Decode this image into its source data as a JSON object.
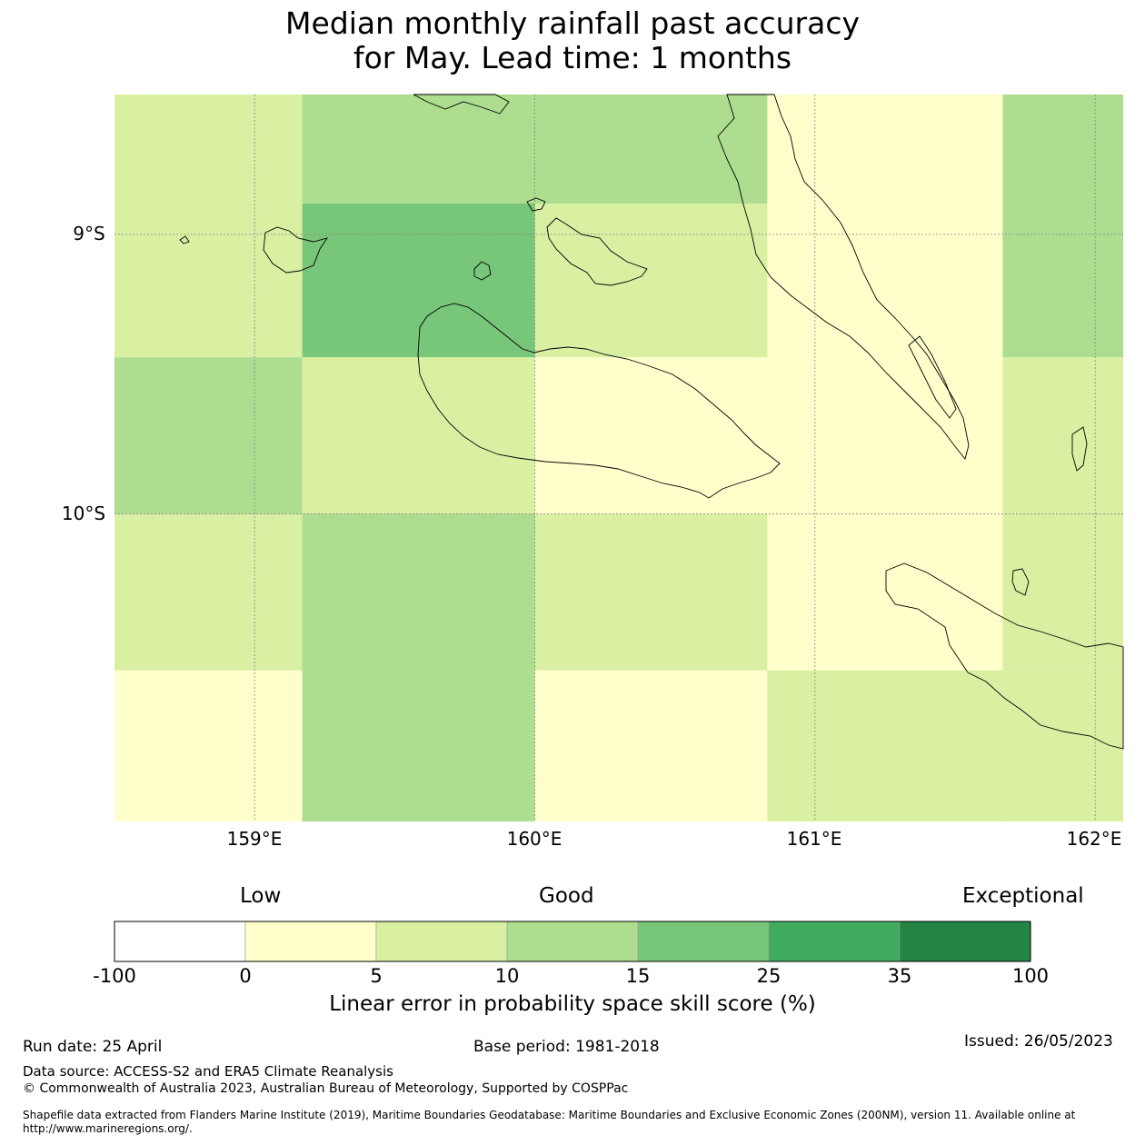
{
  "title_line1": "Median monthly rainfall past accuracy",
  "title_line2": "for May. Lead time: 1 months",
  "map": {
    "lat_labels": [
      "9°S",
      "10°S"
    ],
    "lon_labels": [
      "159°E",
      "160°E",
      "161°E",
      "162°E"
    ],
    "lon_range": [
      158.5,
      162.1
    ],
    "lat_range": [
      -8.5,
      -11.1
    ]
  },
  "grid_cells": [
    {
      "lon": [
        158.5,
        159.17
      ],
      "lat": [
        -8.5,
        -8.89
      ],
      "category": 2
    },
    {
      "lon": [
        159.17,
        160.0
      ],
      "lat": [
        -8.5,
        -8.89
      ],
      "category": 3
    },
    {
      "lon": [
        160.0,
        160.83
      ],
      "lat": [
        -8.5,
        -8.89
      ],
      "category": 3
    },
    {
      "lon": [
        160.83,
        161.67
      ],
      "lat": [
        -8.5,
        -8.89
      ],
      "category": 1
    },
    {
      "lon": [
        161.67,
        162.1
      ],
      "lat": [
        -8.5,
        -8.89
      ],
      "category": 3
    },
    {
      "lon": [
        158.5,
        159.17
      ],
      "lat": [
        -8.89,
        -9.44
      ],
      "category": 2
    },
    {
      "lon": [
        159.17,
        160.0
      ],
      "lat": [
        -8.89,
        -9.44
      ],
      "category": 4
    },
    {
      "lon": [
        160.0,
        160.83
      ],
      "lat": [
        -8.89,
        -9.44
      ],
      "category": 2
    },
    {
      "lon": [
        160.83,
        161.67
      ],
      "lat": [
        -8.89,
        -9.44
      ],
      "category": 1
    },
    {
      "lon": [
        161.67,
        162.1
      ],
      "lat": [
        -8.89,
        -9.44
      ],
      "category": 3
    },
    {
      "lon": [
        158.5,
        159.17
      ],
      "lat": [
        -9.44,
        -10.0
      ],
      "category": 3
    },
    {
      "lon": [
        159.17,
        160.0
      ],
      "lat": [
        -9.44,
        -10.0
      ],
      "category": 2
    },
    {
      "lon": [
        160.0,
        160.83
      ],
      "lat": [
        -9.44,
        -10.0
      ],
      "category": 1
    },
    {
      "lon": [
        160.83,
        161.67
      ],
      "lat": [
        -9.44,
        -10.0
      ],
      "category": 1
    },
    {
      "lon": [
        161.67,
        162.1
      ],
      "lat": [
        -9.44,
        -10.0
      ],
      "category": 2
    },
    {
      "lon": [
        158.5,
        159.17
      ],
      "lat": [
        -10.0,
        -10.56
      ],
      "category": 2
    },
    {
      "lon": [
        159.17,
        160.0
      ],
      "lat": [
        -10.0,
        -10.56
      ],
      "category": 3
    },
    {
      "lon": [
        160.0,
        160.83
      ],
      "lat": [
        -10.0,
        -10.56
      ],
      "category": 2
    },
    {
      "lon": [
        160.83,
        161.67
      ],
      "lat": [
        -10.0,
        -10.56
      ],
      "category": 1
    },
    {
      "lon": [
        161.67,
        162.1
      ],
      "lat": [
        -10.0,
        -10.56
      ],
      "category": 2
    },
    {
      "lon": [
        158.5,
        159.17
      ],
      "lat": [
        -10.56,
        -11.1
      ],
      "category": 1
    },
    {
      "lon": [
        159.17,
        160.0
      ],
      "lat": [
        -10.56,
        -11.1
      ],
      "category": 3
    },
    {
      "lon": [
        160.0,
        160.83
      ],
      "lat": [
        -10.56,
        -11.1
      ],
      "category": 1
    },
    {
      "lon": [
        160.83,
        161.67
      ],
      "lat": [
        -10.56,
        -11.1
      ],
      "category": 2
    },
    {
      "lon": [
        161.67,
        162.1
      ],
      "lat": [
        -10.56,
        -11.1
      ],
      "category": 2
    }
  ],
  "colorbar": {
    "labels": {
      "low": "Low",
      "good": "Good",
      "exceptional": "Exceptional"
    },
    "ticks": [
      "-100",
      "0",
      "5",
      "10",
      "15",
      "25",
      "35",
      "100"
    ],
    "colors": [
      "#ffffff",
      "#ffffcc",
      "#d9f0a3",
      "#addd8e",
      "#78c679",
      "#41ab5d",
      "#238443"
    ],
    "title": "Linear error in probability space skill score (%)"
  },
  "footer": {
    "run_date": "Run date: 25 April",
    "base_period": "Base period: 1981-2018",
    "issued": "Issued: 26/05/2023",
    "data_source": "Data source: ACCESS-S2 and ERA5 Climate Reanalysis",
    "copyright": "© Commonwealth of Australia 2023, Australian Bureau of Meteorology, Supported by COSPPac",
    "shapefile": "Shapefile data extracted from Flanders Marine Institute (2019), Maritime Boundaries Geodatabase: Maritime Boundaries and Exclusive Economic Zones (200NM), version 11. Available online at http://www.marineregions.org/."
  }
}
